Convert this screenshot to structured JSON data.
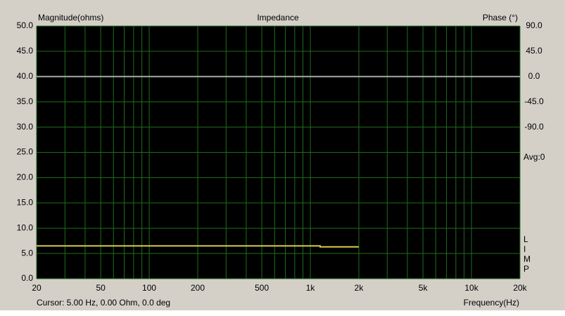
{
  "chart_data": {
    "type": "line",
    "title": "Impedance",
    "y_label": "Magnitude(ohms)",
    "y2_label": "Phase (°)",
    "x_label": "Frequency(Hz)",
    "status": "Cursor: 5.00 Hz, 0.00 Ohm, 0.0 deg",
    "average": "Avg:0",
    "side_labels": [
      "L",
      "I",
      "M",
      "P"
    ],
    "log_x": true,
    "grid": true,
    "background": "#000000",
    "grid_color": "#1e6e1e",
    "xlim": [
      20,
      20000
    ],
    "xticks": [
      20,
      50,
      100,
      200,
      500,
      {
        "value": 1000,
        "label": "1k"
      },
      {
        "value": 2000,
        "label": "2k"
      },
      {
        "value": 5000,
        "label": "5k"
      },
      {
        "value": 10000,
        "label": "10k"
      },
      {
        "value": 20000,
        "label": "20k"
      }
    ],
    "xminor": [
      30,
      40,
      60,
      70,
      80,
      90,
      300,
      400,
      600,
      700,
      800,
      900,
      3000,
      4000,
      6000,
      7000,
      8000,
      9000
    ],
    "ylim": [
      0,
      50
    ],
    "yticks": [
      {
        "value": 0,
        "label": "0.0"
      },
      {
        "value": 5,
        "label": "5.0"
      },
      {
        "value": 10,
        "label": "10.0"
      },
      {
        "value": 15,
        "label": "15.0"
      },
      {
        "value": 20,
        "label": "20.0"
      },
      {
        "value": 25,
        "label": "25.0"
      },
      {
        "value": 30,
        "label": "30.0"
      },
      {
        "value": 35,
        "label": "35.0"
      },
      {
        "value": 40,
        "label": "40.0"
      },
      {
        "value": 45,
        "label": "45.0"
      },
      {
        "value": 50,
        "label": "50.0"
      }
    ],
    "y2lim": [
      -360,
      90
    ],
    "y2ticks": [
      {
        "value": 90,
        "label": "90.0"
      },
      {
        "value": 45,
        "label": "45.0"
      },
      {
        "value": 0,
        "label": "0.0"
      },
      {
        "value": -45,
        "label": "-45.0"
      },
      {
        "value": -90,
        "label": "-90.0"
      }
    ],
    "series": [
      {
        "name": "Magnitude",
        "color": "#d8cc4a",
        "x": [
          20,
          1150,
          1150,
          2000
        ],
        "values": [
          6.5,
          6.5,
          6.3,
          6.3
        ]
      },
      {
        "name": "Phase",
        "color": "#a8a8a8",
        "axis": "y2",
        "x": [
          20,
          20000
        ],
        "values": [
          0,
          0
        ]
      }
    ]
  }
}
